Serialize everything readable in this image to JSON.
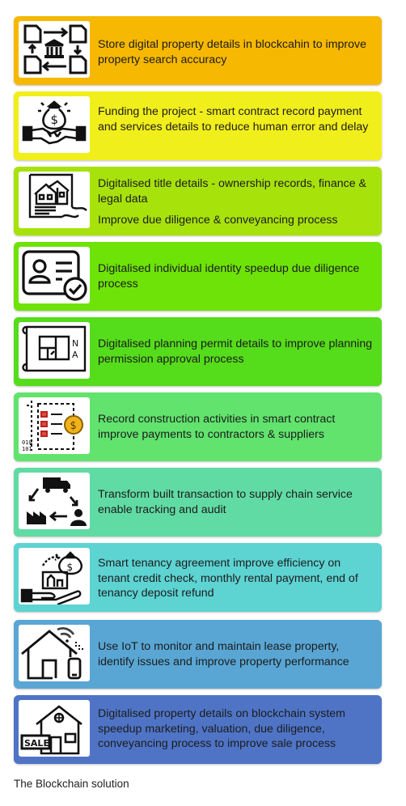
{
  "steps": [
    {
      "text": "Store digital property details in blockcahin to improve property search accuracy",
      "color": "#f6b800",
      "icon": "document-exchange-bank-icon"
    },
    {
      "text": "Funding the project - smart contract record payment and services details to reduce human error and delay",
      "color": "#f1ef1b",
      "icon": "money-bag-handshake-icon"
    },
    {
      "text": "Digitalised title details - ownership records, finance & legal data",
      "text2": "Improve due diligence & conveyancing process",
      "color": "#a7e20b",
      "icon": "house-deed-icon"
    },
    {
      "text": "Digitalised individual identity speedup due diligence process",
      "color": "#6ee307",
      "icon": "id-card-check-icon"
    },
    {
      "text": "Digitalised planning permit details to improve planning permission approval process",
      "color": "#55dc1b",
      "icon": "floor-plan-icon"
    },
    {
      "text": "Record construction activities in smart contract improve payments to contractors & suppliers",
      "color": "#61e36d",
      "icon": "contract-coin-icon"
    },
    {
      "text": "Transform built transaction to supply chain service enable tracking and audit",
      "color": "#61dba4",
      "icon": "supply-chain-cycle-icon"
    },
    {
      "text": "Smart tenancy agreement improve efficiency on tenant credit check, monthly rental payment, end of tenancy deposit refund",
      "color": "#5dd3d2",
      "icon": "hand-money-house-icon"
    },
    {
      "text": "Use IoT to monitor and maintain lease property, identify issues and improve property performance",
      "color": "#59a6d4",
      "icon": "smart-home-phone-icon"
    },
    {
      "text": "Digitalised property details on blockchain system speedup marketing, valuation, due diligence, conveyancing process to improve sale process",
      "color": "#4f74c6",
      "icon": "house-for-sale-icon"
    }
  ],
  "caption": "The Blockchain solution"
}
